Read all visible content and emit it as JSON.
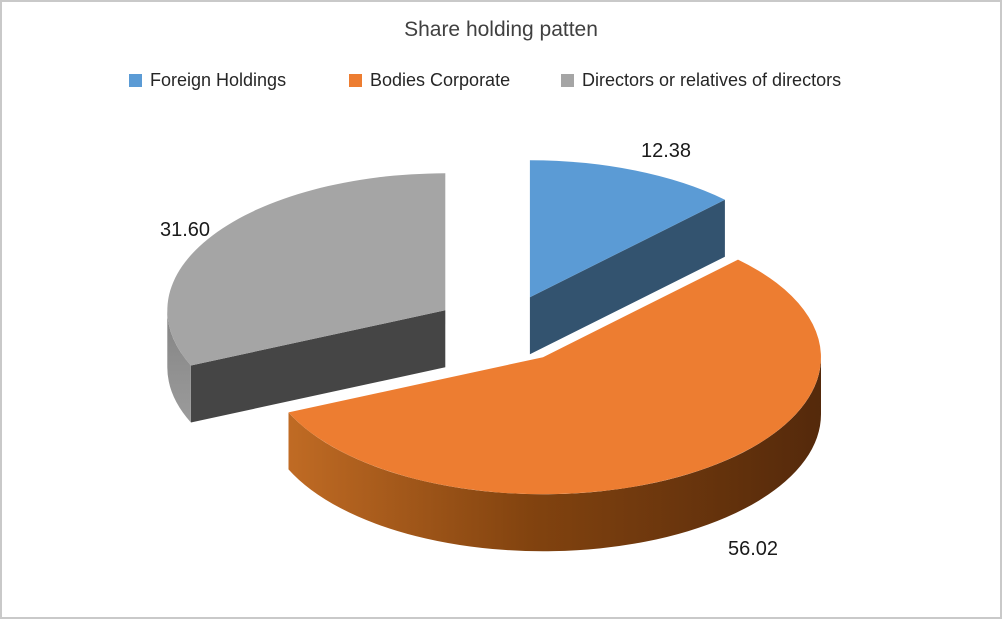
{
  "window": {
    "background": "#FFFFFF",
    "border_color": "#C9C9C9"
  },
  "chart_data": {
    "type": "pie",
    "style": "3d-exploded-pie",
    "title": "Share holding patten",
    "direction": "clockwise",
    "start_angle_deg": 0,
    "legend_position": "top",
    "grid": false,
    "series": [
      {
        "name": "Foreign Holdings",
        "value": 12.38,
        "color": "#5B9BD5",
        "side_color": "#33536F"
      },
      {
        "name": "Bodies Corporate",
        "value": 56.02,
        "color": "#ED7D31",
        "side_color": "#82430F"
      },
      {
        "name": "Directors or relatives of directors",
        "value": 31.6,
        "color": "#A5A5A5",
        "side_color": "#454545"
      }
    ],
    "data_labels": {
      "visible": true,
      "format": "0.00",
      "values": [
        "12.38",
        "56.02",
        "31.60"
      ]
    }
  }
}
